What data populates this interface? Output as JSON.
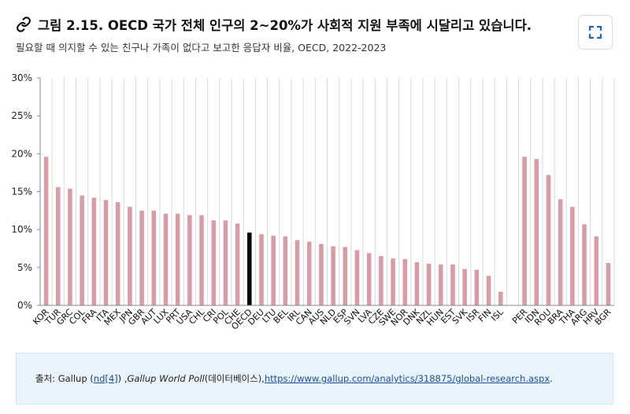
{
  "header": {
    "title": "그림 2.15. OECD 국가 전체 인구의 2~20%가 사회적 지원 부족에 시달리고 있습니다.",
    "subtitle": "필요할 때 의지할 수 있는 친구나 가족이 없다고 보고한 응답자 비율, OECD, 2022-2023",
    "link_icon": "link-icon",
    "expand_icon": "expand-icon"
  },
  "source": {
    "prefix": "출처: Gallup (",
    "ref_link": "nd[4]",
    "mid": ") , ",
    "poll_name": "Gallup World Poll",
    "db_note": " (데이터베이스), ",
    "url_text": "https://www.gallup.com/analytics/318875/global-research.aspx",
    "suffix": " ."
  },
  "colors": {
    "bar": "#dc9aa5",
    "highlight_bar": "#000000",
    "gridline": "#d9d9d9",
    "axis": "#888888"
  },
  "chart_data": {
    "type": "bar",
    "title": "",
    "xlabel": "",
    "ylabel": "",
    "ylim": [
      0,
      30
    ],
    "yticks": [
      0,
      5,
      10,
      15,
      20,
      25,
      30
    ],
    "ytick_labels": [
      "0%",
      "5%",
      "10%",
      "15%",
      "20%",
      "25%",
      "30%"
    ],
    "grid": "vertical",
    "highlight_category": "OECD",
    "categories": [
      "KOR",
      "TUR",
      "GRC",
      "COL",
      "FRA",
      "ITA",
      "MEX",
      "JPN",
      "GBR",
      "AUT",
      "LUX",
      "PRT",
      "USA",
      "CHL",
      "CRI",
      "POL",
      "CHE",
      "OECD",
      "DEU",
      "LTU",
      "BEL",
      "IRL",
      "CAN",
      "AUS",
      "NLD",
      "ESP",
      "SVN",
      "LVA",
      "CZE",
      "SWE",
      "NOR",
      "DNK",
      "NZL",
      "HUN",
      "EST",
      "SVK",
      "ISR",
      "FIN",
      "ISL",
      "",
      "PER",
      "IDN",
      "ROU",
      "BRA",
      "THA",
      "ARG",
      "HRV",
      "BGR"
    ],
    "values": [
      19.6,
      15.6,
      15.4,
      14.5,
      14.2,
      13.9,
      13.6,
      13.0,
      12.5,
      12.5,
      12.1,
      12.1,
      11.9,
      11.9,
      11.2,
      11.2,
      10.8,
      9.6,
      9.4,
      9.2,
      9.1,
      8.6,
      8.4,
      8.1,
      7.8,
      7.7,
      7.3,
      6.9,
      6.5,
      6.2,
      6.1,
      5.7,
      5.5,
      5.4,
      5.4,
      4.8,
      4.7,
      3.9,
      1.8,
      null,
      19.6,
      19.3,
      17.2,
      14.0,
      13.0,
      10.7,
      9.1,
      5.6
    ]
  }
}
